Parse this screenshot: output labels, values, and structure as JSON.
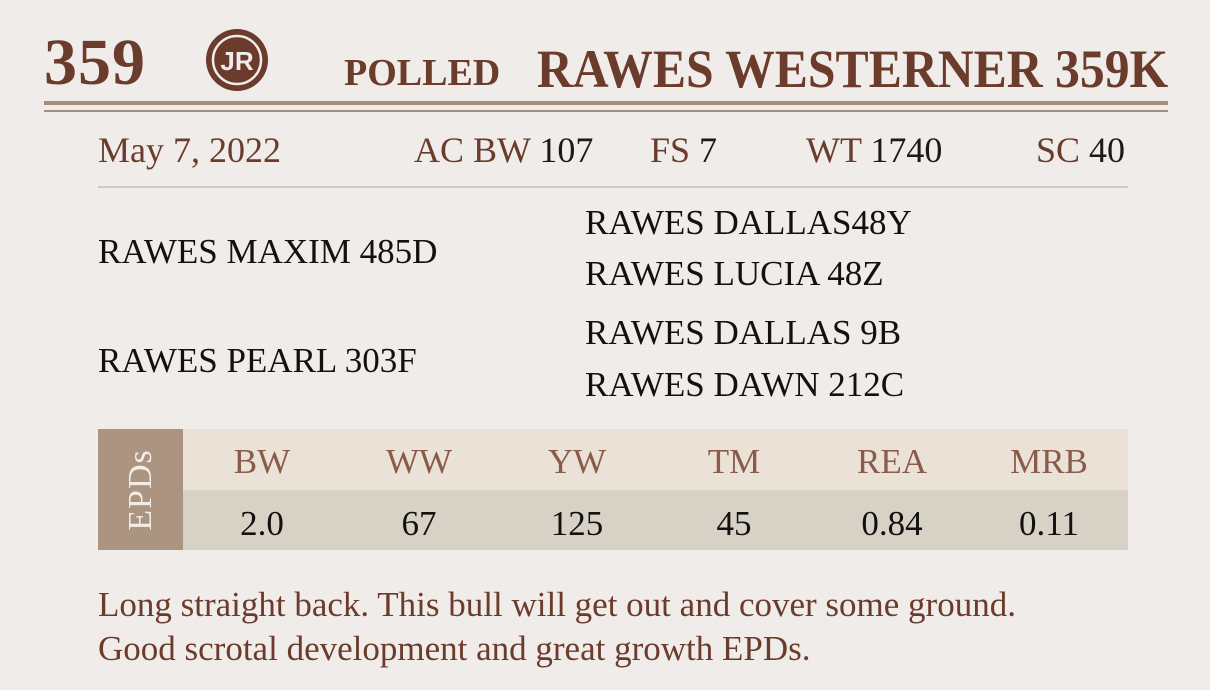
{
  "header": {
    "lot_number": "359",
    "logo_text": "JR",
    "polled_label": "POLLED",
    "bull_name": "RAWES WESTERNER 359K"
  },
  "stats": {
    "birth_date": "May 7, 2022",
    "items": [
      {
        "label": "AC BW",
        "value": "107"
      },
      {
        "label": "FS",
        "value": "7"
      },
      {
        "label": "WT",
        "value": "1740"
      },
      {
        "label": "SC",
        "value": "40"
      }
    ]
  },
  "pedigree": {
    "sire": "RAWES MAXIM 485D",
    "sire_sire": "RAWES DALLAS48Y",
    "sire_dam": "RAWES LUCIA 48Z",
    "dam": "RAWES PEARL 303F",
    "dam_sire": "RAWES DALLAS 9B",
    "dam_dam": "RAWES DAWN 212C"
  },
  "epds": {
    "side_label": "EPDs",
    "columns": [
      "BW",
      "WW",
      "YW",
      "TM",
      "REA",
      "MRB"
    ],
    "values": [
      "2.0",
      "67",
      "125",
      "45",
      "0.84",
      "0.11"
    ]
  },
  "notes": {
    "line1": "Long straight back. This bull will get out and cover some ground.",
    "line2": "Good scrotal development and great growth EPDs."
  },
  "colors": {
    "accent_brown": "#6b3b2b",
    "epd_side": "#ab9480",
    "epd_header_bg": "#ebe2d7",
    "epd_values_bg": "#d8d1c6",
    "background": "#f0ecea"
  }
}
